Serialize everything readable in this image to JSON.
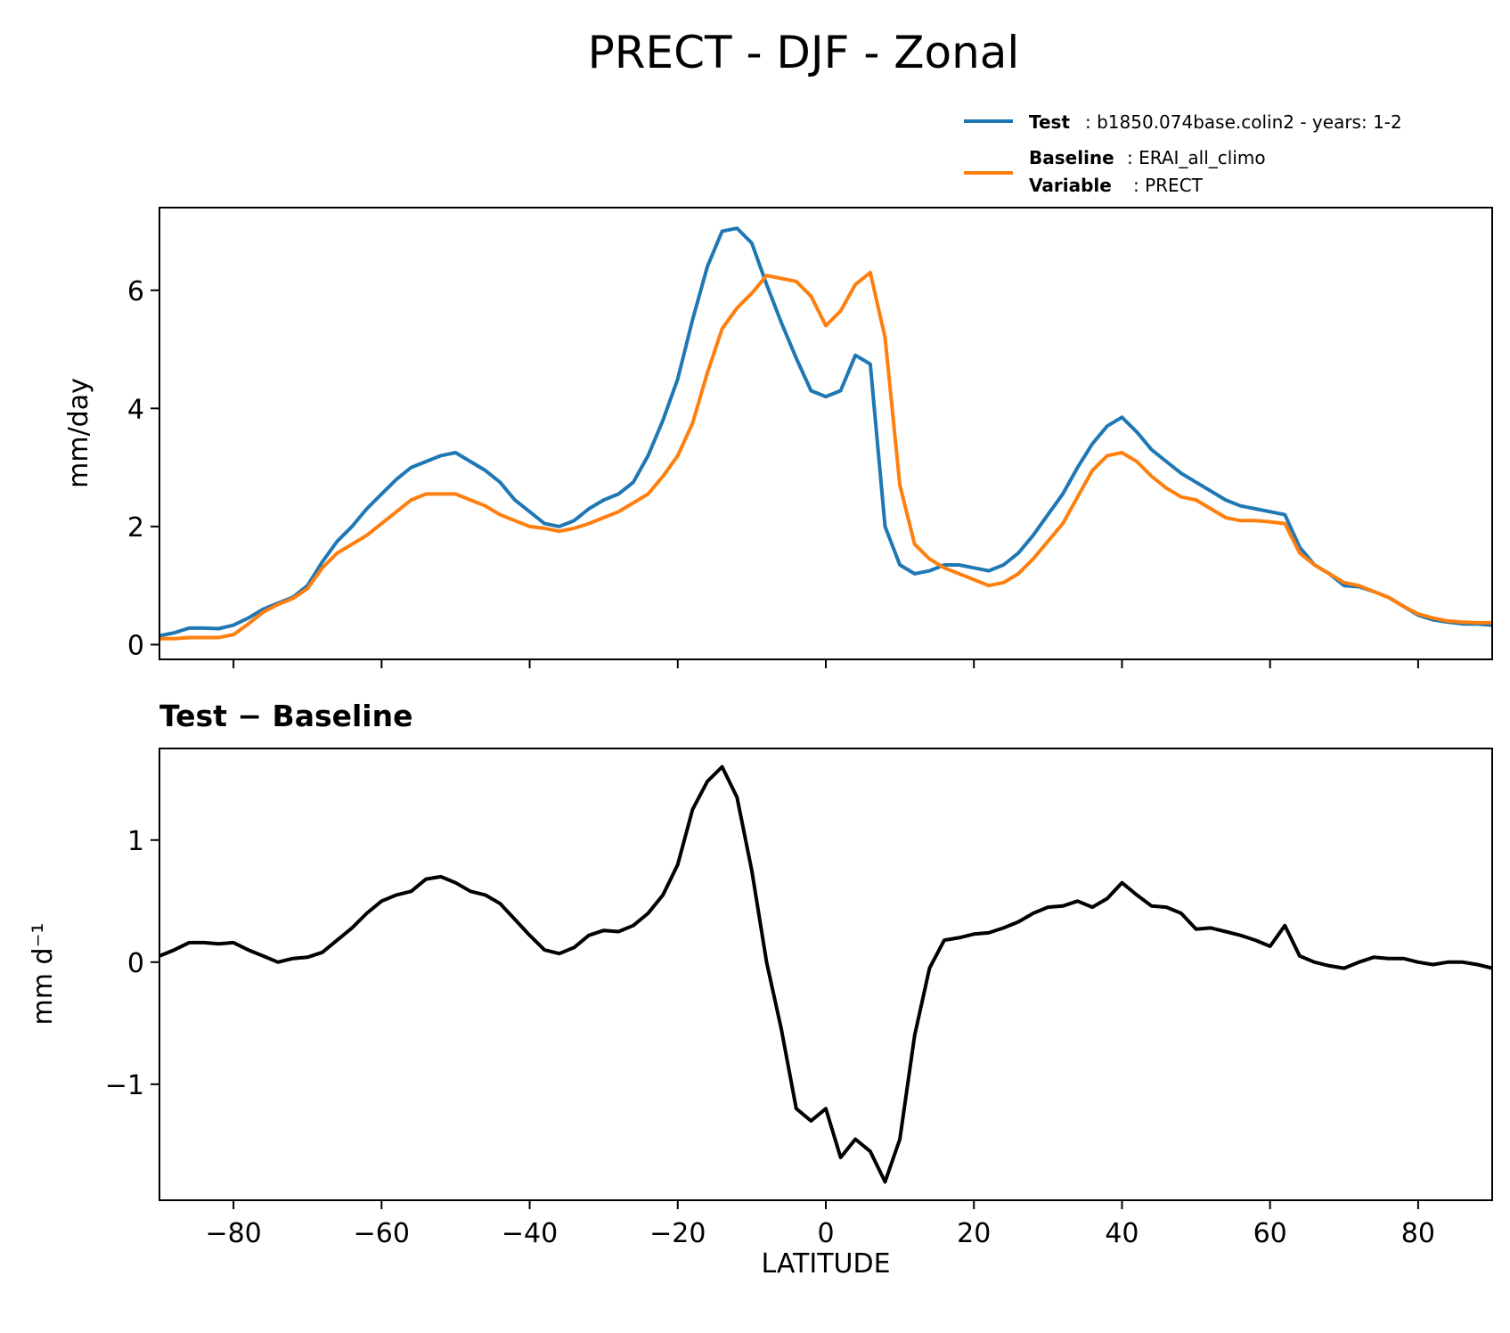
{
  "chart_data": [
    {
      "type": "line",
      "title": "PRECT - DJF - Zonal",
      "xlabel": "",
      "ylabel": "mm/day",
      "xlim": [
        -90,
        90
      ],
      "ylim": [
        -0.25,
        7.4
      ],
      "yticks": [
        0,
        2,
        4,
        6
      ],
      "ytick_labels": [
        "0",
        "2",
        "4",
        "6"
      ],
      "xticks": [
        -80,
        -60,
        -40,
        -20,
        0,
        20,
        40,
        60,
        80
      ],
      "grid": false,
      "legend": {
        "placement": "above top-right",
        "entries": [
          {
            "name": "test",
            "label_bold": "Test",
            "label_text": ": b1850.074base.colin2 - years: 1-2",
            "color": "#1f77b4"
          },
          {
            "name": "baseline",
            "label_bold": "Baseline",
            "label_text": ": ERAI_all_climo",
            "color": "#ff7f0e",
            "extra_bold": "Variable",
            "extra_text": ": PRECT"
          }
        ]
      },
      "x": [
        -90,
        -88,
        -86,
        -84,
        -82,
        -80,
        -78,
        -76,
        -74,
        -72,
        -70,
        -68,
        -66,
        -64,
        -62,
        -60,
        -58,
        -56,
        -54,
        -52,
        -50,
        -48,
        -46,
        -44,
        -42,
        -40,
        -38,
        -36,
        -34,
        -32,
        -30,
        -28,
        -26,
        -24,
        -22,
        -20,
        -18,
        -16,
        -14,
        -12,
        -10,
        -8,
        -6,
        -4,
        -2,
        0,
        2,
        4,
        6,
        8,
        10,
        12,
        14,
        16,
        18,
        20,
        22,
        24,
        26,
        28,
        30,
        32,
        34,
        36,
        38,
        40,
        42,
        44,
        46,
        48,
        50,
        52,
        54,
        56,
        58,
        60,
        62,
        64,
        66,
        68,
        70,
        72,
        74,
        76,
        78,
        80,
        82,
        84,
        86,
        88,
        90
      ],
      "series": [
        {
          "name": "Test",
          "color": "#1f77b4",
          "values": [
            0.15,
            0.2,
            0.28,
            0.28,
            0.27,
            0.33,
            0.45,
            0.6,
            0.7,
            0.8,
            1.0,
            1.4,
            1.75,
            2.0,
            2.3,
            2.55,
            2.8,
            3.0,
            3.1,
            3.2,
            3.25,
            3.1,
            2.95,
            2.75,
            2.45,
            2.25,
            2.05,
            2.0,
            2.1,
            2.3,
            2.45,
            2.55,
            2.75,
            3.2,
            3.8,
            4.5,
            5.5,
            6.4,
            7.0,
            7.05,
            6.8,
            6.1,
            5.45,
            4.85,
            4.3,
            4.2,
            4.3,
            4.9,
            4.75,
            2.0,
            1.35,
            1.2,
            1.25,
            1.35,
            1.35,
            1.3,
            1.25,
            1.35,
            1.55,
            1.85,
            2.2,
            2.55,
            3.0,
            3.4,
            3.7,
            3.85,
            3.6,
            3.3,
            3.1,
            2.9,
            2.75,
            2.6,
            2.45,
            2.35,
            2.3,
            2.25,
            2.2,
            1.65,
            1.35,
            1.2,
            1.0,
            0.98,
            0.9,
            0.8,
            0.65,
            0.5,
            0.42,
            0.38,
            0.35,
            0.35,
            0.33
          ]
        },
        {
          "name": "Baseline",
          "color": "#ff7f0e",
          "values": [
            0.1,
            0.1,
            0.12,
            0.12,
            0.12,
            0.17,
            0.35,
            0.55,
            0.68,
            0.78,
            0.95,
            1.3,
            1.55,
            1.7,
            1.85,
            2.05,
            2.25,
            2.45,
            2.55,
            2.55,
            2.55,
            2.45,
            2.35,
            2.2,
            2.1,
            2.0,
            1.97,
            1.92,
            1.97,
            2.05,
            2.15,
            2.25,
            2.4,
            2.55,
            2.85,
            3.2,
            3.75,
            4.6,
            5.35,
            5.7,
            5.95,
            6.25,
            6.2,
            6.15,
            5.9,
            5.4,
            5.65,
            6.1,
            6.3,
            5.2,
            2.7,
            1.7,
            1.45,
            1.3,
            1.2,
            1.1,
            1.0,
            1.05,
            1.2,
            1.45,
            1.75,
            2.05,
            2.5,
            2.95,
            3.2,
            3.25,
            3.1,
            2.85,
            2.65,
            2.5,
            2.45,
            2.3,
            2.15,
            2.1,
            2.1,
            2.08,
            2.05,
            1.55,
            1.35,
            1.2,
            1.05,
            1.0,
            0.9,
            0.8,
            0.65,
            0.52,
            0.45,
            0.4,
            0.38,
            0.37,
            0.37
          ]
        }
      ]
    },
    {
      "type": "line",
      "title": "Test − Baseline",
      "xlabel": "LATITUDE",
      "ylabel": "mm d⁻¹",
      "xlim": [
        -90,
        90
      ],
      "ylim": [
        -1.95,
        1.75
      ],
      "yticks": [
        -1,
        0,
        1
      ],
      "ytick_labels": [
        "−1",
        "0",
        "1"
      ],
      "xticks": [
        -80,
        -60,
        -40,
        -20,
        0,
        20,
        40,
        60,
        80
      ],
      "xtick_labels": [
        "−80",
        "−60",
        "−40",
        "−20",
        "0",
        "20",
        "40",
        "60",
        "80"
      ],
      "grid": false,
      "x": [
        -90,
        -88,
        -86,
        -84,
        -82,
        -80,
        -78,
        -76,
        -74,
        -72,
        -70,
        -68,
        -66,
        -64,
        -62,
        -60,
        -58,
        -56,
        -54,
        -52,
        -50,
        -48,
        -46,
        -44,
        -42,
        -40,
        -38,
        -36,
        -34,
        -32,
        -30,
        -28,
        -26,
        -24,
        -22,
        -20,
        -18,
        -16,
        -14,
        -12,
        -10,
        -8,
        -6,
        -4,
        -2,
        0,
        2,
        4,
        6,
        8,
        10,
        12,
        14,
        16,
        18,
        20,
        22,
        24,
        26,
        28,
        30,
        32,
        34,
        36,
        38,
        40,
        42,
        44,
        46,
        48,
        50,
        52,
        54,
        56,
        58,
        60,
        62,
        64,
        66,
        68,
        70,
        72,
        74,
        76,
        78,
        80,
        82,
        84,
        86,
        88,
        90
      ],
      "series": [
        {
          "name": "Test − Baseline",
          "color": "#000000",
          "values": [
            0.05,
            0.1,
            0.16,
            0.16,
            0.15,
            0.16,
            0.1,
            0.05,
            0.0,
            0.03,
            0.04,
            0.08,
            0.18,
            0.28,
            0.4,
            0.5,
            0.55,
            0.58,
            0.68,
            0.7,
            0.65,
            0.58,
            0.55,
            0.48,
            0.35,
            0.22,
            0.1,
            0.07,
            0.12,
            0.22,
            0.26,
            0.25,
            0.3,
            0.4,
            0.55,
            0.8,
            1.25,
            1.48,
            1.6,
            1.35,
            0.75,
            0.0,
            -0.55,
            -1.2,
            -1.3,
            -1.2,
            -1.6,
            -1.45,
            -1.55,
            -1.8,
            -1.45,
            -0.6,
            -0.05,
            0.18,
            0.2,
            0.23,
            0.24,
            0.28,
            0.33,
            0.4,
            0.45,
            0.46,
            0.5,
            0.45,
            0.52,
            0.65,
            0.55,
            0.46,
            0.45,
            0.4,
            0.27,
            0.28,
            0.25,
            0.22,
            0.18,
            0.13,
            0.3,
            0.05,
            0.0,
            -0.03,
            -0.05,
            0.0,
            0.04,
            0.03,
            0.03,
            0.0,
            -0.02,
            0.0,
            0.0,
            -0.02,
            -0.05
          ]
        }
      ]
    }
  ]
}
